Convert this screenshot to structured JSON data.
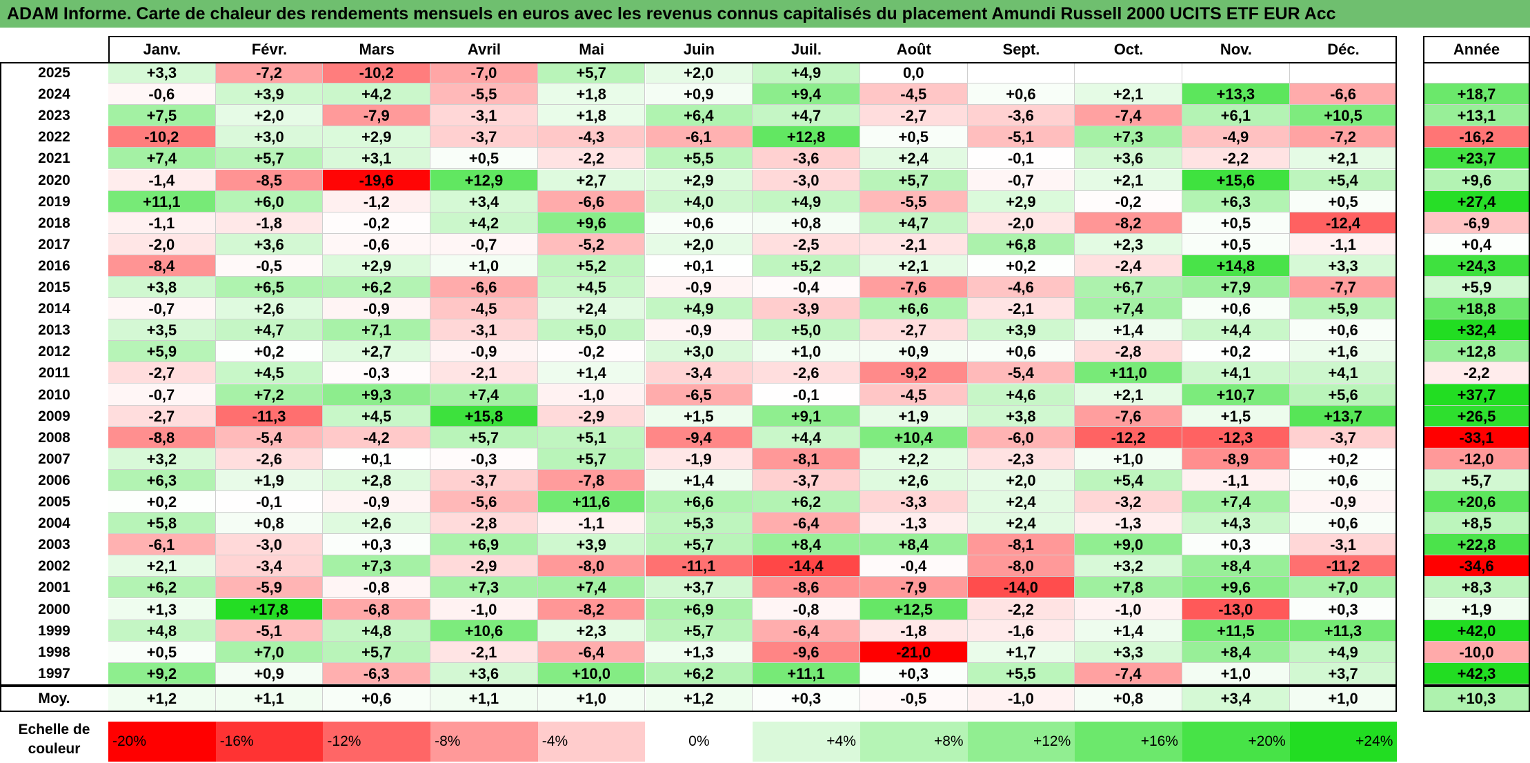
{
  "title": "ADAM Informe. Carte de chaleur des rendements mensuels en euros avec les revenus connus capitalisés du placement Amundi Russell 2000 UCITS ETF EUR Acc",
  "colors": {
    "title_bg": "#6fbf6f",
    "negative_max": "#ff0000",
    "neutral": "#ffffff",
    "positive_max": "#22dd22"
  },
  "chart_data": {
    "type": "heatmap",
    "months": [
      "Janv.",
      "Févr.",
      "Mars",
      "Avril",
      "Mai",
      "Juin",
      "Juil.",
      "Août",
      "Sept.",
      "Oct.",
      "Nov.",
      "Déc."
    ],
    "annual_header": "Année",
    "average_label": "Moy.",
    "rows": [
      {
        "year": "2025",
        "values": [
          "+3,3",
          "-7,2",
          "-10,2",
          "-7,0",
          "+5,7",
          "+2,0",
          "+4,9",
          "0,0",
          "",
          "",
          "",
          ""
        ],
        "annual": ""
      },
      {
        "year": "2024",
        "values": [
          "-0,6",
          "+3,9",
          "+4,2",
          "-5,5",
          "+1,8",
          "+0,9",
          "+9,4",
          "-4,5",
          "+0,6",
          "+2,1",
          "+13,3",
          "-6,6"
        ],
        "annual": "+18,7"
      },
      {
        "year": "2023",
        "values": [
          "+7,5",
          "+2,0",
          "-7,9",
          "-3,1",
          "+1,8",
          "+6,4",
          "+4,7",
          "-2,7",
          "-3,6",
          "-7,4",
          "+6,1",
          "+10,5"
        ],
        "annual": "+13,1"
      },
      {
        "year": "2022",
        "values": [
          "-10,2",
          "+3,0",
          "+2,9",
          "-3,7",
          "-4,3",
          "-6,1",
          "+12,8",
          "+0,5",
          "-5,1",
          "+7,3",
          "-4,9",
          "-7,2"
        ],
        "annual": "-16,2"
      },
      {
        "year": "2021",
        "values": [
          "+7,4",
          "+5,7",
          "+3,1",
          "+0,5",
          "-2,2",
          "+5,5",
          "-3,6",
          "+2,4",
          "-0,1",
          "+3,6",
          "-2,2",
          "+2,1"
        ],
        "annual": "+23,7"
      },
      {
        "year": "2020",
        "values": [
          "-1,4",
          "-8,5",
          "-19,6",
          "+12,9",
          "+2,7",
          "+2,9",
          "-3,0",
          "+5,7",
          "-0,7",
          "+2,1",
          "+15,6",
          "+5,4"
        ],
        "annual": "+9,6"
      },
      {
        "year": "2019",
        "values": [
          "+11,1",
          "+6,0",
          "-1,2",
          "+3,4",
          "-6,6",
          "+4,0",
          "+4,9",
          "-5,5",
          "+2,9",
          "-0,2",
          "+6,3",
          "+0,5"
        ],
        "annual": "+27,4"
      },
      {
        "year": "2018",
        "values": [
          "-1,1",
          "-1,8",
          "-0,2",
          "+4,2",
          "+9,6",
          "+0,6",
          "+0,8",
          "+4,7",
          "-2,0",
          "-8,2",
          "+0,5",
          "-12,4"
        ],
        "annual": "-6,9"
      },
      {
        "year": "2017",
        "values": [
          "-2,0",
          "+3,6",
          "-0,6",
          "-0,7",
          "-5,2",
          "+2,0",
          "-2,5",
          "-2,1",
          "+6,8",
          "+2,3",
          "+0,5",
          "-1,1"
        ],
        "annual": "+0,4"
      },
      {
        "year": "2016",
        "values": [
          "-8,4",
          "-0,5",
          "+2,9",
          "+1,0",
          "+5,2",
          "+0,1",
          "+5,2",
          "+2,1",
          "+0,2",
          "-2,4",
          "+14,8",
          "+3,3"
        ],
        "annual": "+24,3"
      },
      {
        "year": "2015",
        "values": [
          "+3,8",
          "+6,5",
          "+6,2",
          "-6,6",
          "+4,5",
          "-0,9",
          "-0,4",
          "-7,6",
          "-4,6",
          "+6,7",
          "+7,9",
          "-7,7"
        ],
        "annual": "+5,9"
      },
      {
        "year": "2014",
        "values": [
          "-0,7",
          "+2,6",
          "-0,9",
          "-4,5",
          "+2,4",
          "+4,9",
          "-3,9",
          "+6,6",
          "-2,1",
          "+7,4",
          "+0,6",
          "+5,9"
        ],
        "annual": "+18,8"
      },
      {
        "year": "2013",
        "values": [
          "+3,5",
          "+4,7",
          "+7,1",
          "-3,1",
          "+5,0",
          "-0,9",
          "+5,0",
          "-2,7",
          "+3,9",
          "+1,4",
          "+4,4",
          "+0,6"
        ],
        "annual": "+32,4"
      },
      {
        "year": "2012",
        "values": [
          "+5,9",
          "+0,2",
          "+2,7",
          "-0,9",
          "-0,2",
          "+3,0",
          "+1,0",
          "+0,9",
          "+0,6",
          "-2,8",
          "+0,2",
          "+1,6"
        ],
        "annual": "+12,8"
      },
      {
        "year": "2011",
        "values": [
          "-2,7",
          "+4,5",
          "-0,3",
          "-2,1",
          "+1,4",
          "-3,4",
          "-2,6",
          "-9,2",
          "-5,4",
          "+11,0",
          "+4,1",
          "+4,1"
        ],
        "annual": "-2,2"
      },
      {
        "year": "2010",
        "values": [
          "-0,7",
          "+7,2",
          "+9,3",
          "+7,4",
          "-1,0",
          "-6,5",
          "-0,1",
          "-4,5",
          "+4,6",
          "+2,1",
          "+10,7",
          "+5,6"
        ],
        "annual": "+37,7"
      },
      {
        "year": "2009",
        "values": [
          "-2,7",
          "-11,3",
          "+4,5",
          "+15,8",
          "-2,9",
          "+1,5",
          "+9,1",
          "+1,9",
          "+3,8",
          "-7,6",
          "+1,5",
          "+13,7"
        ],
        "annual": "+26,5"
      },
      {
        "year": "2008",
        "values": [
          "-8,8",
          "-5,4",
          "-4,2",
          "+5,7",
          "+5,1",
          "-9,4",
          "+4,4",
          "+10,4",
          "-6,0",
          "-12,2",
          "-12,3",
          "-3,7"
        ],
        "annual": "-33,1"
      },
      {
        "year": "2007",
        "values": [
          "+3,2",
          "-2,6",
          "+0,1",
          "-0,3",
          "+5,7",
          "-1,9",
          "-8,1",
          "+2,2",
          "-2,3",
          "+1,0",
          "-8,9",
          "+0,2"
        ],
        "annual": "-12,0"
      },
      {
        "year": "2006",
        "values": [
          "+6,3",
          "+1,9",
          "+2,8",
          "-3,7",
          "-7,8",
          "+1,4",
          "-3,7",
          "+2,6",
          "+2,0",
          "+5,4",
          "-1,1",
          "+0,6"
        ],
        "annual": "+5,7"
      },
      {
        "year": "2005",
        "values": [
          "+0,2",
          "-0,1",
          "-0,9",
          "-5,6",
          "+11,6",
          "+6,6",
          "+6,2",
          "-3,3",
          "+2,4",
          "-3,2",
          "+7,4",
          "-0,9"
        ],
        "annual": "+20,6"
      },
      {
        "year": "2004",
        "values": [
          "+5,8",
          "+0,8",
          "+2,6",
          "-2,8",
          "-1,1",
          "+5,3",
          "-6,4",
          "-1,3",
          "+2,4",
          "-1,3",
          "+4,3",
          "+0,6"
        ],
        "annual": "+8,5"
      },
      {
        "year": "2003",
        "values": [
          "-6,1",
          "-3,0",
          "+0,3",
          "+6,9",
          "+3,9",
          "+5,7",
          "+8,4",
          "+8,4",
          "-8,1",
          "+9,0",
          "+0,3",
          "-3,1"
        ],
        "annual": "+22,8"
      },
      {
        "year": "2002",
        "values": [
          "+2,1",
          "-3,4",
          "+7,3",
          "-2,9",
          "-8,0",
          "-11,1",
          "-14,4",
          "-0,4",
          "-8,0",
          "+3,2",
          "+8,4",
          "-11,2"
        ],
        "annual": "-34,6"
      },
      {
        "year": "2001",
        "values": [
          "+6,2",
          "-5,9",
          "-0,8",
          "+7,3",
          "+7,4",
          "+3,7",
          "-8,6",
          "-7,9",
          "-14,0",
          "+7,8",
          "+9,6",
          "+7,0"
        ],
        "annual": "+8,3"
      },
      {
        "year": "2000",
        "values": [
          "+1,3",
          "+17,8",
          "-6,8",
          "-1,0",
          "-8,2",
          "+6,9",
          "-0,8",
          "+12,5",
          "-2,2",
          "-1,0",
          "-13,0",
          "+0,3"
        ],
        "annual": "+1,9"
      },
      {
        "year": "1999",
        "values": [
          "+4,8",
          "-5,1",
          "+4,8",
          "+10,6",
          "+2,3",
          "+5,7",
          "-6,4",
          "-1,8",
          "-1,6",
          "+1,4",
          "+11,5",
          "+11,3"
        ],
        "annual": "+42,0"
      },
      {
        "year": "1998",
        "values": [
          "+0,5",
          "+7,0",
          "+5,7",
          "-2,1",
          "-6,4",
          "+1,3",
          "-9,6",
          "-21,0",
          "+1,7",
          "+3,3",
          "+8,4",
          "+4,9"
        ],
        "annual": "-10,0"
      },
      {
        "year": "1997",
        "values": [
          "+9,2",
          "+0,9",
          "-6,3",
          "+3,6",
          "+10,0",
          "+6,2",
          "+11,1",
          "+0,3",
          "+5,5",
          "-7,4",
          "+1,0",
          "+3,7"
        ],
        "annual": "+42,3"
      }
    ],
    "averages": [
      "+1,2",
      "+1,1",
      "+0,6",
      "+1,1",
      "+1,0",
      "+1,2",
      "+0,3",
      "-0,5",
      "-1,0",
      "+0,8",
      "+3,4",
      "+1,0"
    ],
    "average_annual": "+10,3",
    "color_scale": {
      "label": "Echelle de couleur",
      "stops": [
        "-20%",
        "-16%",
        "-12%",
        "-8%",
        "-4%",
        "0%",
        "+4%",
        "+8%",
        "+12%",
        "+16%",
        "+20%",
        "+24%"
      ]
    }
  }
}
